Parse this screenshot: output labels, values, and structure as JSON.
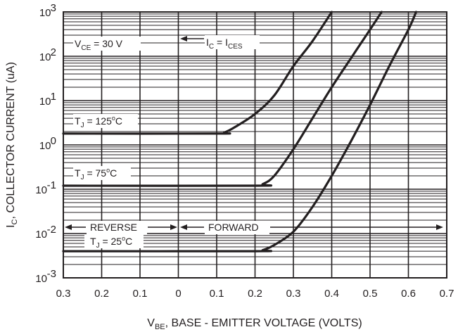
{
  "chart_data": {
    "type": "line",
    "xlabel_main": "V",
    "xlabel_sub": "BE",
    "xlabel_rest": ", BASE - EMITTER VOLTAGE (VOLTS)",
    "ylabel_main": "I",
    "ylabel_sub": "C",
    "ylabel_rest": ", COLLECTOR CURRENT (uA)",
    "x_ticks": [
      "0.3",
      "0.2",
      "0.1",
      "0",
      "0.1",
      "0.2",
      "0.3",
      "0.4",
      "0.5",
      "0.6",
      "0.7"
    ],
    "y_ticks": [
      {
        "base": "10",
        "exp": "3"
      },
      {
        "base": "10",
        "exp": "2"
      },
      {
        "base": "10",
        "exp": "1"
      },
      {
        "base": "10",
        "exp": "0"
      },
      {
        "base": "10",
        "exp": "-1"
      },
      {
        "base": "10",
        "exp": "-2"
      },
      {
        "base": "10",
        "exp": "-3"
      }
    ],
    "x_axis_note": "axis runs from -0.3 (reverse bias) to 0.7 V (forward bias)",
    "xlim": [
      -0.3,
      0.7
    ],
    "ylim": [
      0.001,
      1000
    ],
    "y_scale": "log",
    "grid": true,
    "series": [
      {
        "name": "TJ = 125°C",
        "x": [
          -0.3,
          0.1,
          0.12,
          0.15,
          0.2,
          0.25,
          0.3,
          0.35,
          0.4
        ],
        "y": [
          1.8,
          1.8,
          1.9,
          2.6,
          5.0,
          13,
          60,
          220,
          1000
        ]
      },
      {
        "name": "TJ = 75°C",
        "x": [
          -0.3,
          0.2,
          0.22,
          0.25,
          0.3,
          0.35,
          0.4,
          0.45,
          0.5,
          0.53
        ],
        "y": [
          0.12,
          0.12,
          0.13,
          0.2,
          0.8,
          4,
          20,
          90,
          400,
          1000
        ]
      },
      {
        "name": "TJ = 25°C",
        "x": [
          -0.3,
          0.2,
          0.22,
          0.25,
          0.3,
          0.35,
          0.4,
          0.45,
          0.5,
          0.55,
          0.6,
          0.62
        ],
        "y": [
          0.004,
          0.004,
          0.0042,
          0.0055,
          0.011,
          0.04,
          0.2,
          1.2,
          8,
          60,
          400,
          1000
        ]
      }
    ],
    "annotations": {
      "vce": {
        "main": "V",
        "sub": "CE",
        "rest": " = 30 V"
      },
      "ic": {
        "main1": "I",
        "sub1": "C",
        "mid": " = I",
        "sub2": "CES"
      },
      "tj125": {
        "main": "T",
        "sub": "J",
        "rest": " = 125",
        "sup": "o",
        "unit": "C"
      },
      "tj75": {
        "main": "T",
        "sub": "J",
        "rest": " = 75",
        "sup": "o",
        "unit": "C"
      },
      "tj25": {
        "main": "T",
        "sub": "J",
        "rest": " = 25",
        "sup": "o",
        "unit": "C"
      },
      "reverse": "REVERSE",
      "forward": "FORWARD"
    }
  }
}
